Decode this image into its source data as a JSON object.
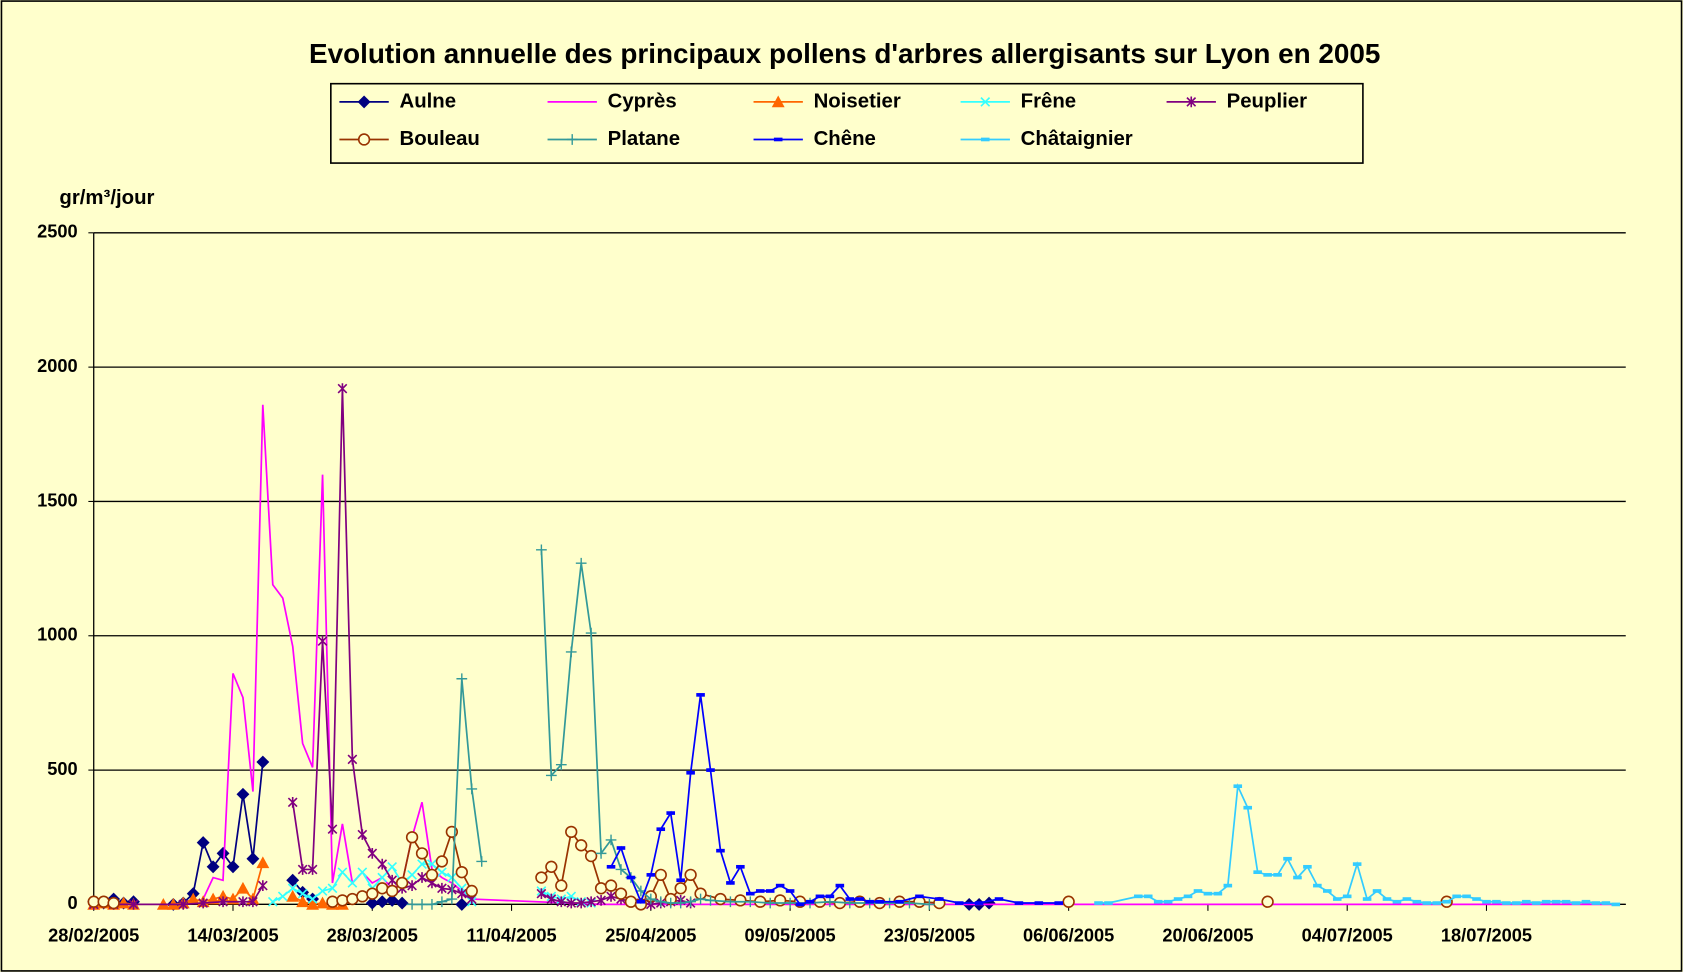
{
  "chart_data": {
    "type": "line",
    "title": "Evolution annuelle des principaux pollens d'arbres allergisants sur Lyon en 2005",
    "y_label": "gr/m³/jour",
    "ylim": [
      0,
      2500
    ],
    "yticks": [
      0,
      500,
      1000,
      1500,
      2000,
      2500
    ],
    "xlim": [
      "28/02/2005",
      "01/08/2005"
    ],
    "xticks": [
      "28/02/2005",
      "14/03/2005",
      "28/03/2005",
      "11/04/2005",
      "25/04/2005",
      "09/05/2005",
      "23/05/2005",
      "06/06/2005",
      "20/06/2005",
      "04/07/2005",
      "18/07/2005"
    ],
    "grid": true,
    "legend": "top",
    "series": [
      {
        "name": "Aulne",
        "color": "#000080",
        "marker": "diamond",
        "x": [
          "28/02/2005",
          "01/03/2005",
          "02/03/2005",
          "03/03/2005",
          "04/03/2005",
          "05/03/2005",
          "08/03/2005",
          "09/03/2005",
          "10/03/2005",
          "11/03/2005",
          "12/03/2005",
          "13/03/2005",
          "14/03/2005",
          "15/03/2005",
          "16/03/2005",
          "17/03/2005",
          "18/03/2005",
          "20/03/2005",
          "21/03/2005",
          "22/03/2005",
          "23/03/2005",
          "28/03/2005",
          "29/03/2005",
          "30/03/2005",
          "31/03/2005",
          "01/04/2005",
          "06/04/2005",
          "07/04/2005",
          "27/05/2005",
          "28/05/2005",
          "29/05/2005"
        ],
        "values": [
          10,
          5,
          20,
          5,
          10,
          null,
          0,
          5,
          40,
          230,
          140,
          190,
          140,
          410,
          170,
          530,
          null,
          90,
          45,
          20,
          null,
          5,
          10,
          15,
          5,
          null,
          0,
          null,
          0,
          0,
          5
        ]
      },
      {
        "name": "Cyprès",
        "color": "#FF00FF",
        "marker": "none",
        "x": [
          "11/03/2005",
          "12/03/2005",
          "13/03/2005",
          "14/03/2005",
          "15/03/2005",
          "16/03/2005",
          "17/03/2005",
          "18/03/2005",
          "19/03/2005",
          "20/03/2005",
          "21/03/2005",
          "22/03/2005",
          "23/03/2005",
          "24/03/2005",
          "25/03/2005",
          "26/03/2005",
          "27/03/2005",
          "28/03/2005",
          "29/03/2005",
          "30/03/2005",
          "31/03/2005",
          "01/04/2005",
          "02/04/2005",
          "03/04/2005",
          "04/04/2005",
          "05/04/2005",
          "06/04/2005",
          "07/04/2005",
          "20/04/2005",
          "10/06/2005",
          "31/07/2005"
        ],
        "values": [
          20,
          100,
          90,
          860,
          770,
          420,
          1860,
          1190,
          1140,
          960,
          600,
          510,
          1600,
          80,
          300,
          80,
          120,
          80,
          100,
          60,
          80,
          250,
          380,
          130,
          100,
          80,
          50,
          20,
          0,
          0,
          0
        ]
      },
      {
        "name": "Noisetier",
        "color": "#FF6600",
        "marker": "triangle",
        "x": [
          "28/02/2005",
          "01/03/2005",
          "02/03/2005",
          "03/03/2005",
          "04/03/2005",
          "05/03/2005",
          "07/03/2005",
          "08/03/2005",
          "09/03/2005",
          "10/03/2005",
          "11/03/2005",
          "12/03/2005",
          "13/03/2005",
          "14/03/2005",
          "15/03/2005",
          "16/03/2005",
          "17/03/2005",
          "18/03/2005",
          "20/03/2005",
          "21/03/2005",
          "22/03/2005",
          "23/03/2005",
          "24/03/2005",
          "25/03/2005"
        ],
        "values": [
          0,
          5,
          0,
          5,
          0,
          null,
          0,
          0,
          5,
          20,
          10,
          20,
          30,
          20,
          60,
          20,
          155,
          null,
          30,
          10,
          0,
          5,
          0,
          0
        ]
      },
      {
        "name": "Frêne",
        "color": "#33FFFF",
        "marker": "x",
        "x": [
          "18/03/2005",
          "19/03/2005",
          "20/03/2005",
          "21/03/2005",
          "22/03/2005",
          "23/03/2005",
          "24/03/2005",
          "25/03/2005",
          "26/03/2005",
          "27/03/2005",
          "28/03/2005",
          "29/03/2005",
          "30/03/2005",
          "31/03/2005",
          "01/04/2005",
          "02/04/2005",
          "03/04/2005",
          "04/04/2005",
          "05/04/2005",
          "06/04/2005",
          "07/04/2005",
          "08/04/2005",
          "14/04/2005",
          "15/04/2005",
          "16/04/2005",
          "17/04/2005",
          "18/04/2005",
          "19/04/2005"
        ],
        "values": [
          10,
          30,
          60,
          40,
          20,
          50,
          60,
          120,
          80,
          120,
          60,
          100,
          140,
          80,
          110,
          150,
          150,
          120,
          100,
          60,
          10,
          null,
          50,
          30,
          20,
          30,
          10,
          5
        ]
      },
      {
        "name": "Peuplier",
        "color": "#800080",
        "marker": "star",
        "x": [
          "28/02/2005",
          "02/03/2005",
          "04/03/2005",
          "09/03/2005",
          "11/03/2005",
          "13/03/2005",
          "15/03/2005",
          "16/03/2005",
          "17/03/2005",
          "18/03/2005",
          "20/03/2005",
          "21/03/2005",
          "22/03/2005",
          "23/03/2005",
          "24/03/2005",
          "25/03/2005",
          "26/03/2005",
          "27/03/2005",
          "28/03/2005",
          "29/03/2005",
          "30/03/2005",
          "31/03/2005",
          "01/04/2005",
          "02/04/2005",
          "03/04/2005",
          "04/04/2005",
          "05/04/2005",
          "06/04/2005",
          "07/04/2005",
          "08/04/2005",
          "14/04/2005",
          "15/04/2005",
          "16/04/2005",
          "17/04/2005",
          "18/04/2005",
          "19/04/2005",
          "20/04/2005",
          "21/04/2005",
          "22/04/2005",
          "23/04/2005",
          "24/04/2005",
          "25/04/2005",
          "26/04/2005",
          "27/04/2005",
          "28/04/2005",
          "29/04/2005"
        ],
        "values": [
          0,
          0,
          0,
          0,
          5,
          10,
          10,
          10,
          70,
          null,
          380,
          130,
          130,
          980,
          280,
          1920,
          540,
          260,
          190,
          150,
          90,
          60,
          70,
          100,
          80,
          60,
          55,
          40,
          20,
          null,
          40,
          20,
          10,
          5,
          5,
          10,
          15,
          30,
          20,
          10,
          5,
          0,
          5,
          10,
          15,
          5
        ]
      },
      {
        "name": "Bouleau",
        "color": "#993300",
        "marker": "circle",
        "x": [
          "28/02/2005",
          "01/03/2005",
          "02/03/2005",
          "03/03/2005",
          "24/03/2005",
          "25/03/2005",
          "26/03/2005",
          "27/03/2005",
          "28/03/2005",
          "29/03/2005",
          "30/03/2005",
          "31/03/2005",
          "01/04/2005",
          "02/04/2005",
          "03/04/2005",
          "04/04/2005",
          "05/04/2005",
          "06/04/2005",
          "07/04/2005",
          "08/04/2005",
          "14/04/2005",
          "15/04/2005",
          "16/04/2005",
          "17/04/2005",
          "18/04/2005",
          "19/04/2005",
          "20/04/2005",
          "21/04/2005",
          "22/04/2005",
          "23/04/2005",
          "24/04/2005",
          "25/04/2005",
          "26/04/2005",
          "27/04/2005",
          "28/04/2005",
          "29/04/2005",
          "30/04/2005",
          "02/05/2005",
          "04/05/2005",
          "06/05/2005",
          "08/05/2005",
          "10/05/2005",
          "12/05/2005",
          "14/05/2005",
          "16/05/2005",
          "18/05/2005",
          "20/05/2005",
          "22/05/2005",
          "24/05/2005",
          "25/05/2005",
          "06/06/2005",
          "07/06/2005",
          "26/06/2005",
          "27/06/2005",
          "14/07/2005"
        ],
        "values": [
          10,
          10,
          5,
          null,
          10,
          15,
          20,
          30,
          40,
          60,
          50,
          80,
          250,
          190,
          110,
          160,
          270,
          120,
          50,
          null,
          100,
          140,
          70,
          270,
          220,
          180,
          60,
          70,
          40,
          10,
          0,
          30,
          110,
          20,
          60,
          110,
          40,
          20,
          15,
          10,
          15,
          10,
          10,
          5,
          10,
          5,
          10,
          10,
          5,
          null,
          10,
          null,
          10,
          null,
          10
        ]
      },
      {
        "name": "Platane",
        "color": "#339999",
        "marker": "plus",
        "x": [
          "01/04/2005",
          "02/04/2005",
          "03/04/2005",
          "04/04/2005",
          "05/04/2005",
          "06/04/2005",
          "07/04/2005",
          "08/04/2005",
          "09/04/2005",
          "14/04/2005",
          "15/04/2005",
          "16/04/2005",
          "17/04/2005",
          "18/04/2005",
          "19/04/2005",
          "20/04/2005",
          "21/04/2005",
          "22/04/2005",
          "23/04/2005",
          "24/04/2005",
          "25/04/2005",
          "26/04/2005",
          "27/04/2005",
          "28/04/2005",
          "29/04/2005",
          "30/04/2005",
          "01/05/2005",
          "03/05/2005",
          "05/05/2005",
          "07/05/2005",
          "09/05/2005",
          "11/05/2005",
          "13/05/2005",
          "15/05/2005",
          "17/05/2005",
          "19/05/2005",
          "21/05/2005",
          "23/05/2005"
        ],
        "values": [
          0,
          0,
          0,
          10,
          20,
          840,
          430,
          160,
          null,
          1320,
          480,
          520,
          940,
          1270,
          1010,
          190,
          240,
          130,
          100,
          50,
          20,
          10,
          5,
          5,
          10,
          20,
          15,
          10,
          10,
          5,
          5,
          5,
          10,
          5,
          5,
          5,
          5,
          0
        ]
      },
      {
        "name": "Chêne",
        "color": "#0000FF",
        "marker": "dash",
        "x": [
          "21/04/2005",
          "22/04/2005",
          "23/04/2005",
          "24/04/2005",
          "25/04/2005",
          "26/04/2005",
          "27/04/2005",
          "28/04/2005",
          "29/04/2005",
          "30/04/2005",
          "01/05/2005",
          "02/05/2005",
          "03/05/2005",
          "04/05/2005",
          "05/05/2005",
          "06/05/2005",
          "07/05/2005",
          "08/05/2005",
          "09/05/2005",
          "10/05/2005",
          "11/05/2005",
          "12/05/2005",
          "13/05/2005",
          "14/05/2005",
          "15/05/2005",
          "16/05/2005",
          "17/05/2005",
          "18/05/2005",
          "20/05/2005",
          "22/05/2005",
          "24/05/2005",
          "26/05/2005",
          "28/05/2005",
          "30/05/2005",
          "01/06/2005",
          "03/06/2005",
          "05/06/2005"
        ],
        "values": [
          140,
          210,
          100,
          10,
          110,
          280,
          340,
          90,
          490,
          780,
          500,
          200,
          80,
          140,
          40,
          50,
          50,
          70,
          50,
          0,
          10,
          30,
          30,
          70,
          20,
          20,
          10,
          10,
          10,
          30,
          20,
          5,
          5,
          20,
          5,
          5,
          5
        ]
      },
      {
        "name": "Châtaignier",
        "color": "#33CCFF",
        "marker": "dash",
        "x": [
          "09/06/2005",
          "10/06/2005",
          "13/06/2005",
          "14/06/2005",
          "15/06/2005",
          "16/06/2005",
          "17/06/2005",
          "18/06/2005",
          "19/06/2005",
          "20/06/2005",
          "21/06/2005",
          "22/06/2005",
          "23/06/2005",
          "24/06/2005",
          "25/06/2005",
          "26/06/2005",
          "27/06/2005",
          "28/06/2005",
          "29/06/2005",
          "30/06/2005",
          "01/07/2005",
          "02/07/2005",
          "03/07/2005",
          "04/07/2005",
          "05/07/2005",
          "06/07/2005",
          "07/07/2005",
          "08/07/2005",
          "09/07/2005",
          "10/07/2005",
          "11/07/2005",
          "12/07/2005",
          "13/07/2005",
          "14/07/2005",
          "15/07/2005",
          "16/07/2005",
          "17/07/2005",
          "18/07/2005",
          "19/07/2005",
          "20/07/2005",
          "21/07/2005",
          "22/07/2005",
          "23/07/2005",
          "24/07/2005",
          "25/07/2005",
          "26/07/2005",
          "27/07/2005",
          "28/07/2005",
          "29/07/2005",
          "30/07/2005",
          "31/07/2005"
        ],
        "values": [
          5,
          5,
          30,
          30,
          10,
          10,
          20,
          30,
          50,
          40,
          40,
          70,
          440,
          360,
          120,
          110,
          110,
          170,
          100,
          140,
          70,
          50,
          20,
          30,
          150,
          20,
          50,
          20,
          10,
          20,
          10,
          5,
          5,
          10,
          30,
          30,
          20,
          10,
          10,
          5,
          5,
          10,
          5,
          10,
          10,
          10,
          5,
          10,
          5,
          5,
          0
        ]
      }
    ]
  }
}
